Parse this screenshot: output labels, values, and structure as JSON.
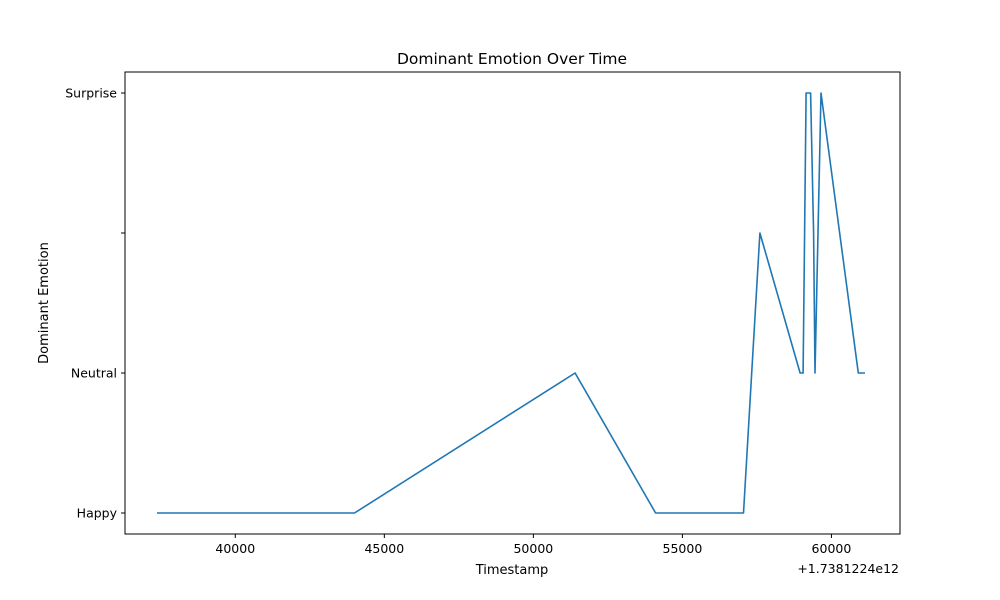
{
  "chart_data": {
    "type": "line",
    "title": "Dominant Emotion Over Time",
    "xlabel": "Timestamp",
    "ylabel": "Dominant Emotion",
    "x_offset_label": "+1.7381224e12",
    "xlim": [
      36300,
      62300
    ],
    "ylim": [
      -0.15,
      3.15
    ],
    "x_ticks": [
      {
        "value": 40000,
        "label": "40000"
      },
      {
        "value": 45000,
        "label": "45000"
      },
      {
        "value": 50000,
        "label": "50000"
      },
      {
        "value": 55000,
        "label": "55000"
      },
      {
        "value": 60000,
        "label": "60000"
      }
    ],
    "y_ticks": [
      {
        "value": 0,
        "label": "Happy"
      },
      {
        "value": 1,
        "label": "Neutral"
      },
      {
        "value": 2,
        "label": ""
      },
      {
        "value": 3,
        "label": "Surprise"
      }
    ],
    "grid": false,
    "series": [
      {
        "color": "#1f77b4",
        "x": [
          37400,
          44000,
          51400,
          54100,
          57050,
          57600,
          58950,
          59050,
          59100,
          59150,
          59300,
          59400,
          59450,
          59650,
          60900,
          61100
        ],
        "y": [
          0,
          0,
          1,
          0,
          0,
          2,
          1,
          1,
          2,
          3,
          3,
          2,
          1,
          3,
          1,
          1
        ]
      }
    ]
  }
}
